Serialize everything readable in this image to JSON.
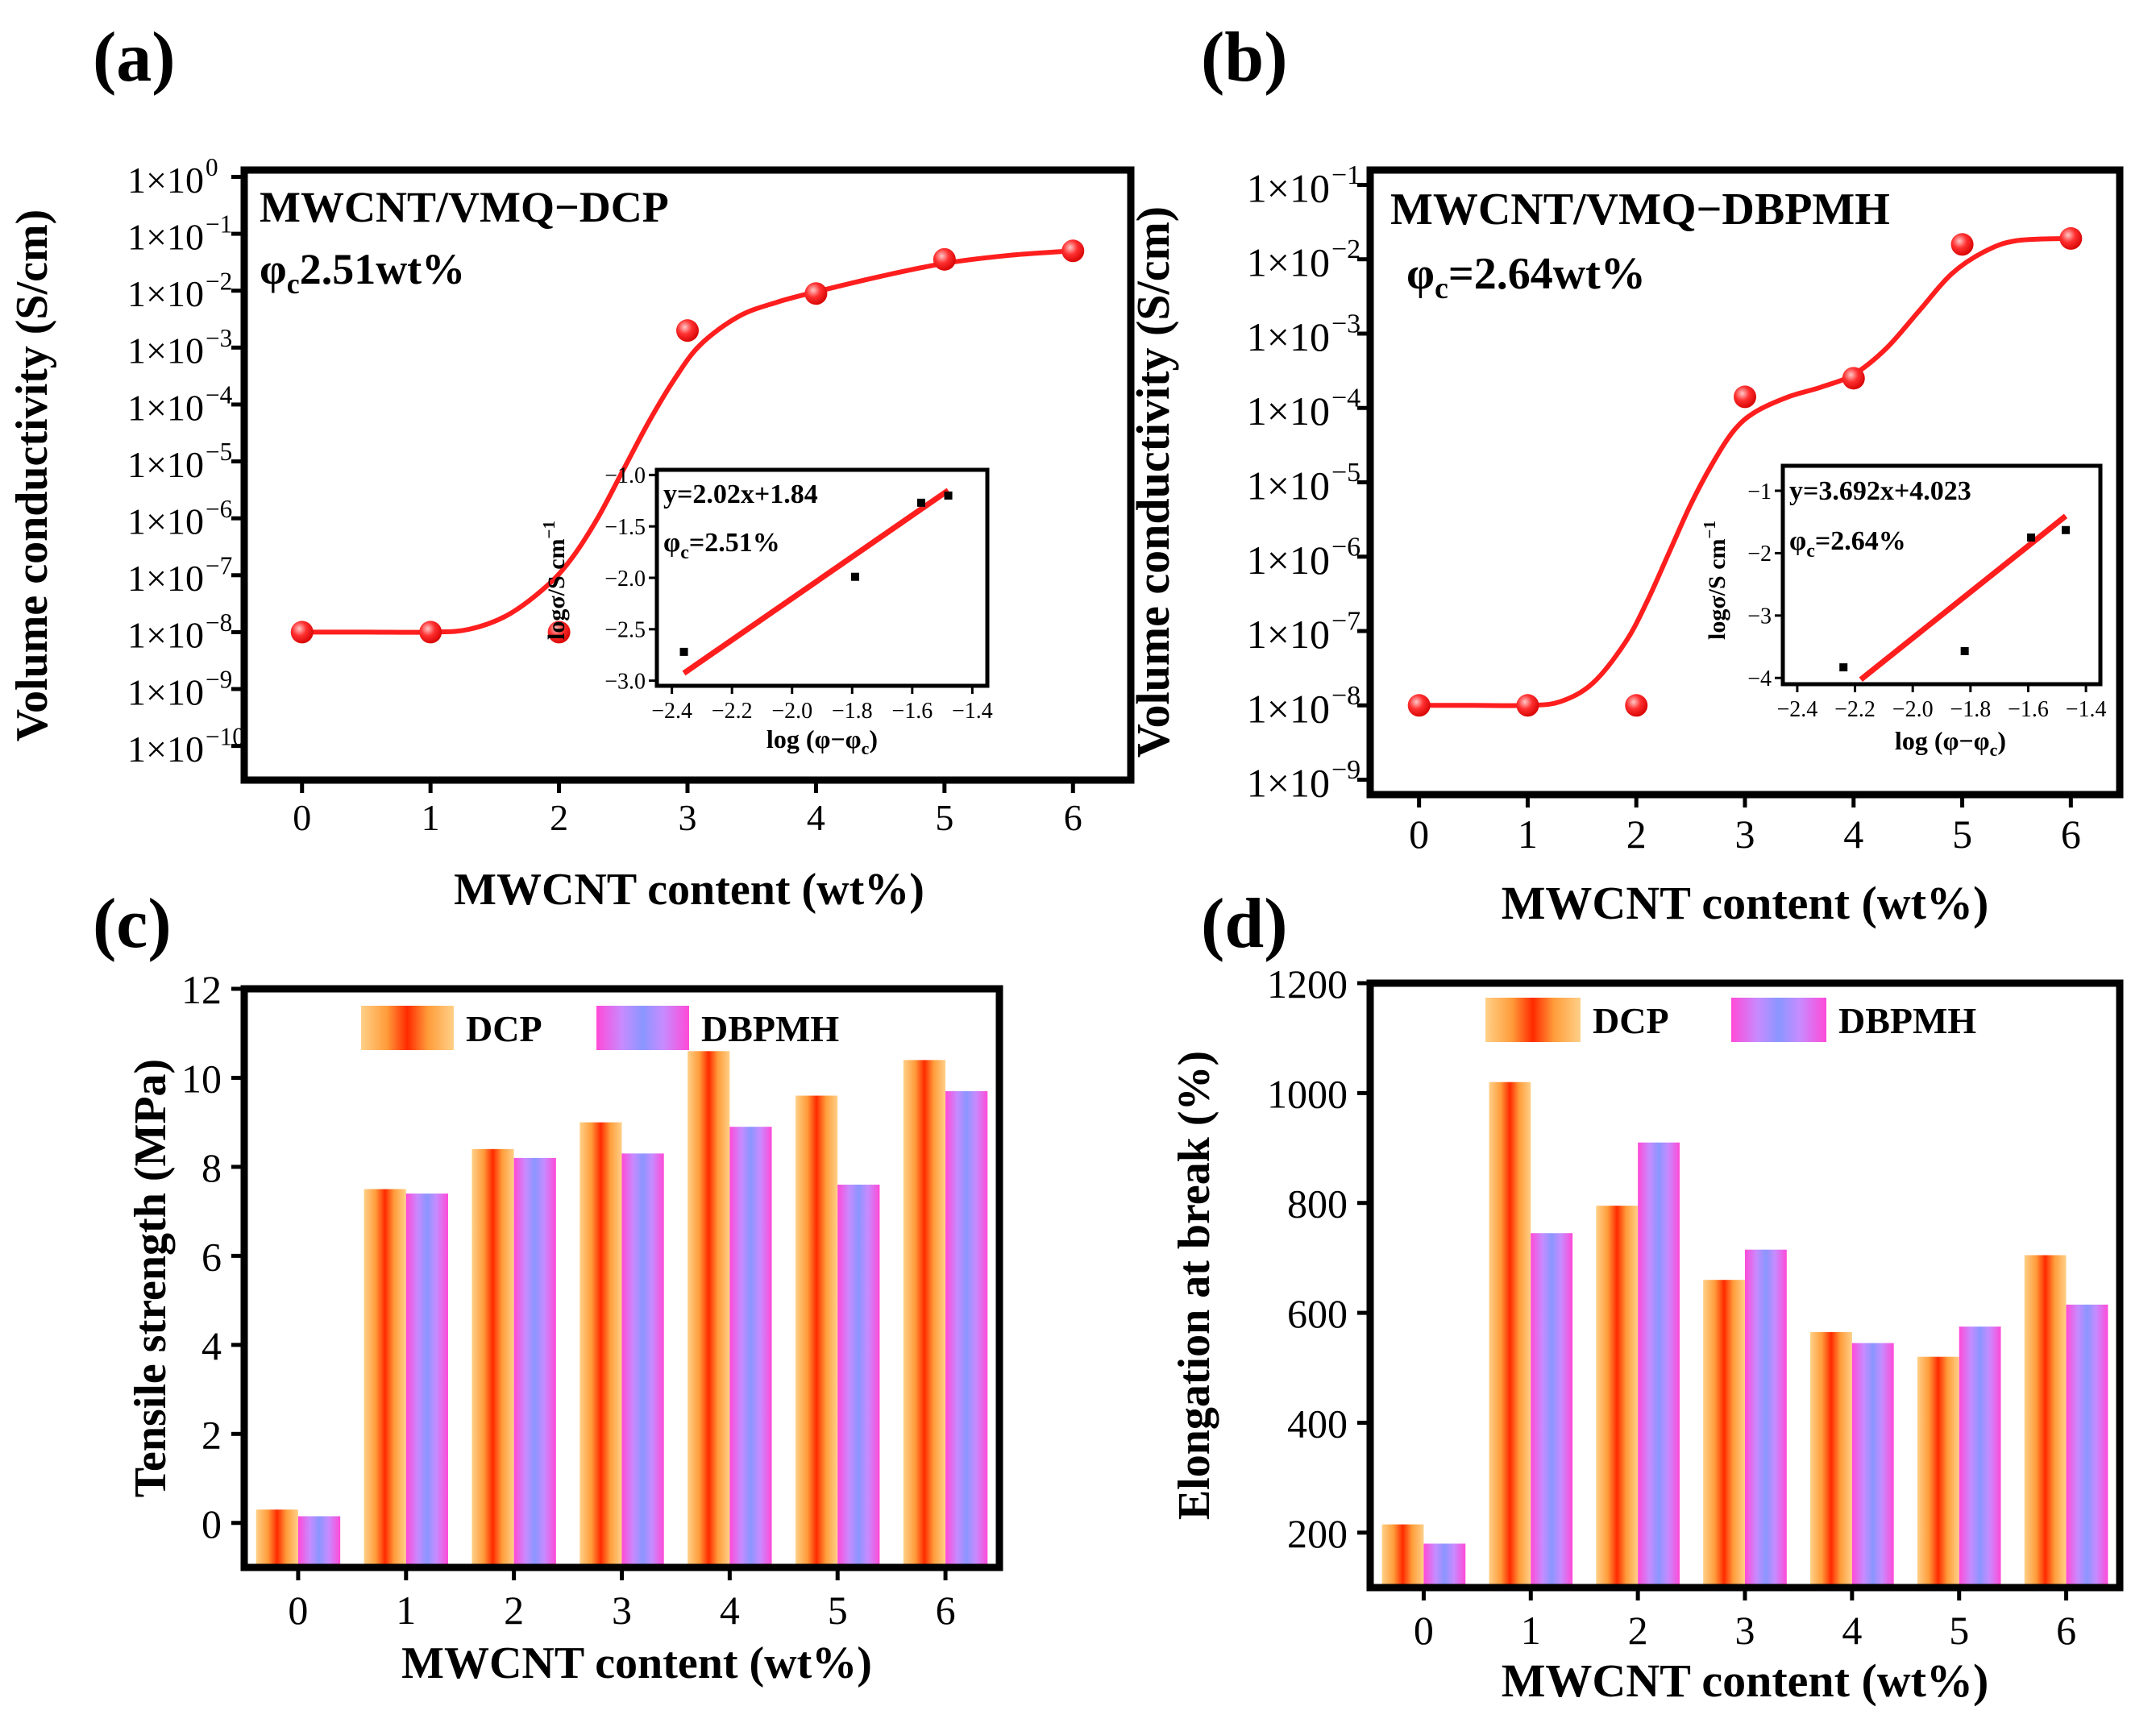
{
  "figure": {
    "panels": {
      "a": {
        "label": "(a)"
      },
      "b": {
        "label": "(b)"
      },
      "c": {
        "label": "(c)"
      },
      "d": {
        "label": "(d)"
      }
    }
  },
  "colors": {
    "curve": "#ff1e1e",
    "dcp_gradient": [
      "#ffd088",
      "#ff9c3a",
      "#ff2a00",
      "#ff9c3a",
      "#ffd088"
    ],
    "dbpmh_gradient": [
      "#ff4ad8",
      "#c78bff",
      "#8a96ff",
      "#c78bff",
      "#ff4ad8"
    ]
  },
  "chart_data": [
    {
      "id": "a",
      "type": "scatter",
      "panel_label": "(a)",
      "title": "MWCNT/VMQ−DCP",
      "threshold_text": "2.51wt%",
      "xlabel": "MWCNT content (wt%)",
      "ylabel": "Volume conductivity (S/cm)",
      "x_ticks": [
        "0",
        "1",
        "2",
        "3",
        "4",
        "5",
        "6"
      ],
      "xlim": [
        -0.45,
        6.45
      ],
      "y_scale": "log10",
      "ylim_exp": [
        -10.6,
        0.12
      ],
      "y_tick_exps": [
        0,
        -1,
        -2,
        -3,
        -4,
        -5,
        -6,
        -7,
        -8,
        -9,
        -10
      ],
      "y_tick_labels": [
        "1×10",
        "1×10",
        "1×10",
        "1×10",
        "1×10",
        "1×10",
        "1×10",
        "1×10",
        "1×10",
        "1×10",
        "1×10"
      ],
      "y_tick_sups": [
        "0",
        "−1",
        "−2",
        "−3",
        "−4",
        "−5",
        "−6",
        "−7",
        "−8",
        "−9",
        "−10"
      ],
      "points": {
        "x": [
          0,
          1,
          2,
          3,
          4,
          5,
          6
        ],
        "log_y": [
          -8,
          -8,
          -8,
          -2.7,
          -2.05,
          -1.45,
          -1.3
        ]
      },
      "fit_curve": {
        "x": [
          0,
          0.5,
          1,
          1.3,
          1.6,
          1.9,
          2.1,
          2.3,
          2.5,
          2.7,
          2.9,
          3.1,
          3.4,
          3.7,
          4,
          4.5,
          5,
          5.5,
          6
        ],
        "log_y": [
          -8,
          -8,
          -8,
          -7.95,
          -7.7,
          -7.2,
          -6.7,
          -6,
          -5.15,
          -4.3,
          -3.55,
          -2.95,
          -2.45,
          -2.2,
          -2.02,
          -1.75,
          -1.52,
          -1.38,
          -1.3
        ]
      },
      "inset": {
        "xlabel": "log (φ−φ",
        "xlabel_sub": "c",
        "ylabel": "logσ/S cm",
        "ylabel_sup": "−1",
        "x_ticks": [
          -2.4,
          -2.2,
          -2.0,
          -1.8,
          -1.6,
          -1.4
        ],
        "x_tick_labels": [
          "−2.4",
          "−2.2",
          "−2.0",
          "−1.8",
          "−1.6",
          "−1.4"
        ],
        "xlim": [
          -2.45,
          -1.35
        ],
        "y_ticks": [
          -1.0,
          -1.5,
          -2.0,
          -2.5,
          -3.0
        ],
        "y_tick_labels": [
          "−1.0",
          "−1.5",
          "−2.0",
          "−2.5",
          "−3.0"
        ],
        "ylim": [
          -3.05,
          -0.95
        ],
        "points": {
          "x": [
            -2.36,
            -1.79,
            -1.57,
            -1.48
          ],
          "y": [
            -2.72,
            -1.99,
            -1.27,
            -1.2
          ]
        },
        "fit_line": {
          "slope": 2.02,
          "intercept": 1.84,
          "x_range": [
            -2.36,
            -1.48
          ]
        },
        "equation": "y=2.02x+1.84",
        "threshold_text": "=2.51%"
      }
    },
    {
      "id": "b",
      "type": "scatter",
      "panel_label": "(b)",
      "title": "MWCNT/VMQ−DBPMH",
      "threshold_text": "=2.64wt%",
      "xlabel": "MWCNT content (wt%)",
      "ylabel": "Volume conductivity (S/cm)",
      "x_ticks": [
        "0",
        "1",
        "2",
        "3",
        "4",
        "5",
        "6"
      ],
      "xlim": [
        -0.45,
        6.45
      ],
      "y_scale": "log10",
      "ylim_exp": [
        -9.2,
        -0.8
      ],
      "y_tick_exps": [
        -1,
        -2,
        -3,
        -4,
        -5,
        -6,
        -7,
        -8,
        -9
      ],
      "y_tick_labels": [
        "1×10",
        "1×10",
        "1×10",
        "1×10",
        "1×10",
        "1×10",
        "1×10",
        "1×10",
        "1×10"
      ],
      "y_tick_sups": [
        "−1",
        "−2",
        "−3",
        "−4",
        "−5",
        "−6",
        "−7",
        "−8",
        "−9"
      ],
      "points": {
        "x": [
          0,
          1,
          2,
          3,
          4,
          5,
          6
        ],
        "log_y": [
          -8,
          -8,
          -8,
          -3.85,
          -3.6,
          -1.8,
          -1.72
        ]
      },
      "fit_curve": {
        "x": [
          0,
          0.5,
          1,
          1.3,
          1.6,
          1.9,
          2.1,
          2.3,
          2.5,
          2.7,
          2.9,
          3.1,
          3.4,
          3.7,
          4,
          4.3,
          4.6,
          4.9,
          5.2,
          5.5,
          6
        ],
        "log_y": [
          -8,
          -8,
          -8,
          -7.95,
          -7.7,
          -7.15,
          -6.6,
          -5.95,
          -5.3,
          -4.75,
          -4.3,
          -4.05,
          -3.85,
          -3.72,
          -3.55,
          -3.2,
          -2.7,
          -2.2,
          -1.9,
          -1.75,
          -1.72
        ]
      },
      "inset": {
        "xlabel": "log (φ−φ",
        "xlabel_sub": "c",
        "ylabel": "logσ/S cm",
        "ylabel_sup": "−1",
        "x_ticks": [
          -2.4,
          -2.2,
          -2.0,
          -1.8,
          -1.6,
          -1.4
        ],
        "x_tick_labels": [
          "−2.4",
          "−2.2",
          "−2.0",
          "−1.8",
          "−1.6",
          "−1.4"
        ],
        "xlim": [
          -2.45,
          -1.35
        ],
        "y_ticks": [
          -1,
          -2,
          -3,
          -4
        ],
        "y_tick_labels": [
          "−1",
          "−2",
          "−3",
          "−4"
        ],
        "ylim": [
          -4.1,
          -0.6
        ],
        "points": {
          "x": [
            -2.24,
            -1.82,
            -1.59,
            -1.47
          ],
          "y": [
            -3.83,
            -3.57,
            -1.75,
            -1.63
          ]
        },
        "fit_line": {
          "slope": 3.692,
          "intercept": 4.023,
          "x_range": [
            -2.18,
            -1.47
          ]
        },
        "equation": "y=3.692x+4.023",
        "threshold_text": "=2.64%"
      }
    },
    {
      "id": "c",
      "type": "bar",
      "panel_label": "(c)",
      "xlabel": "MWCNT content (wt%)",
      "ylabel": "Tensile strength (MPa)",
      "categories": [
        "0",
        "1",
        "2",
        "3",
        "4",
        "5",
        "6"
      ],
      "ylim": [
        -1,
        12
      ],
      "y_ticks": [
        0,
        2,
        4,
        6,
        8,
        10,
        12
      ],
      "series": [
        {
          "name": "DCP",
          "values": [
            0.3,
            7.5,
            8.4,
            9.0,
            10.6,
            9.6,
            10.4
          ]
        },
        {
          "name": "DBPMH",
          "values": [
            0.15,
            7.4,
            8.2,
            8.3,
            8.9,
            7.6,
            9.7
          ]
        }
      ],
      "legend": "top"
    },
    {
      "id": "d",
      "type": "bar",
      "panel_label": "(d)",
      "xlabel": "MWCNT content (wt%)",
      "ylabel": "Elongation at break (%)",
      "categories": [
        "0",
        "1",
        "2",
        "3",
        "4",
        "5",
        "6"
      ],
      "ylim": [
        100,
        1200
      ],
      "y_ticks": [
        200,
        400,
        600,
        800,
        1000,
        1200
      ],
      "series": [
        {
          "name": "DCP",
          "values": [
            215,
            1020,
            795,
            660,
            565,
            520,
            705
          ]
        },
        {
          "name": "DBPMH",
          "values": [
            180,
            745,
            910,
            715,
            545,
            575,
            615
          ]
        }
      ],
      "legend": "top"
    }
  ]
}
